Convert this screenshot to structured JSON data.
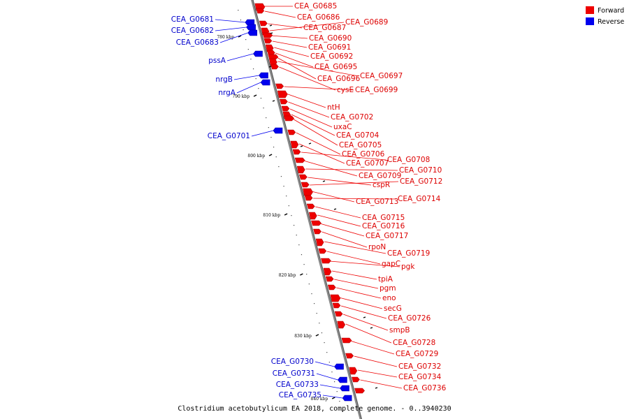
{
  "caption": "Clostridium acetobutylicum EA 2018, complete genome. - 0..3940230",
  "legend": [
    {
      "label": "Forward",
      "color": "#ee0000"
    },
    {
      "label": "Reverse",
      "color": "#0000ee"
    }
  ],
  "colors": {
    "forward": "#ee0000",
    "forward_dark": "#b00000",
    "reverse": "#0000ee",
    "backbone": "#888888"
  },
  "ticks": [
    "780 kbp",
    "790 kbp",
    "800 kbp",
    "810 kbp",
    "820 kbp",
    "830 kbp",
    "840 kbp"
  ],
  "forward_genes": [
    "CEA_G0685",
    "CEA_G0686",
    "CEA_G0687",
    "CEA_G0689",
    "CEA_G0690",
    "CEA_G0691",
    "CEA_G0692",
    "CEA_G0695",
    "CEA_G0696",
    "CEA_G0697",
    "cysE",
    "CEA_G0699",
    "ntH",
    "CEA_G0702",
    "uxaC",
    "CEA_G0704",
    "CEA_G0705",
    "CEA_G0706",
    "CEA_G0707",
    "CEA_G0708",
    "CEA_G0709",
    "CEA_G0710",
    "cspR",
    "CEA_G0712",
    "CEA_G0713",
    "CEA_G0714",
    "CEA_G0715",
    "CEA_G0716",
    "CEA_G0717",
    "rpoN",
    "CEA_G0719",
    "gapC",
    "pgk",
    "tpiA",
    "pgm",
    "eno",
    "secG",
    "CEA_G0726",
    "smpB",
    "CEA_G0728",
    "CEA_G0729",
    "CEA_G0732",
    "CEA_G0734",
    "CEA_G0736"
  ],
  "reverse_genes": [
    "CEA_G0681",
    "CEA_G0682",
    "CEA_G0683",
    "pssA",
    "nrgB",
    "nrgA",
    "CEA_G0701",
    "CEA_G0730",
    "CEA_G0731",
    "CEA_G0733",
    "CEA_G0735"
  ]
}
